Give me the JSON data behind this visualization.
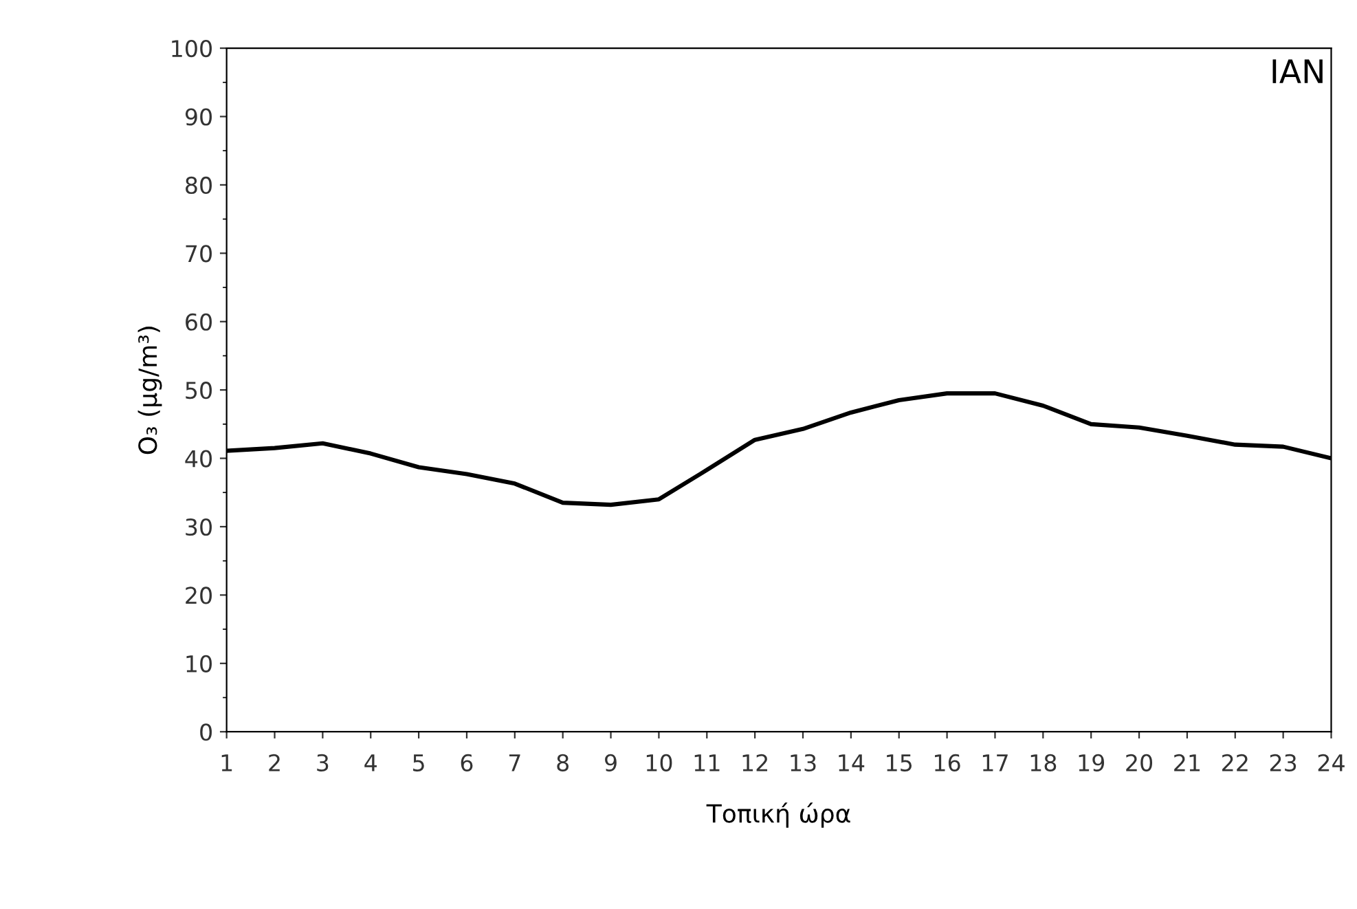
{
  "chart_data": {
    "type": "line",
    "xlabel": "Τοπική ώρα",
    "ylabel": "O₃ (μg/m³)",
    "annotations": [
      "IAN"
    ],
    "x": [
      1,
      2,
      3,
      4,
      5,
      6,
      7,
      8,
      9,
      10,
      11,
      12,
      13,
      14,
      15,
      16,
      17,
      18,
      19,
      20,
      21,
      22,
      23,
      24
    ],
    "series": [
      {
        "color": "#000000",
        "values": [
          41.1,
          41.5,
          42.2,
          40.7,
          38.7,
          37.7,
          36.3,
          33.5,
          33.2,
          34.0,
          38.3,
          42.7,
          44.3,
          46.7,
          48.5,
          49.5,
          49.5,
          47.7,
          45.0,
          44.5,
          43.3,
          42.0,
          41.7,
          40.0
        ]
      }
    ],
    "xlim": [
      1,
      24
    ],
    "xticks": [
      1,
      2,
      3,
      4,
      5,
      6,
      7,
      8,
      9,
      10,
      11,
      12,
      13,
      14,
      15,
      16,
      17,
      18,
      19,
      20,
      21,
      22,
      23,
      24
    ],
    "ylim": [
      0,
      100
    ],
    "yticks": [
      0,
      10,
      20,
      30,
      40,
      50,
      60,
      70,
      80,
      90,
      100
    ],
    "grid": false,
    "legend": false,
    "marker": "none",
    "line_style": "solid"
  }
}
